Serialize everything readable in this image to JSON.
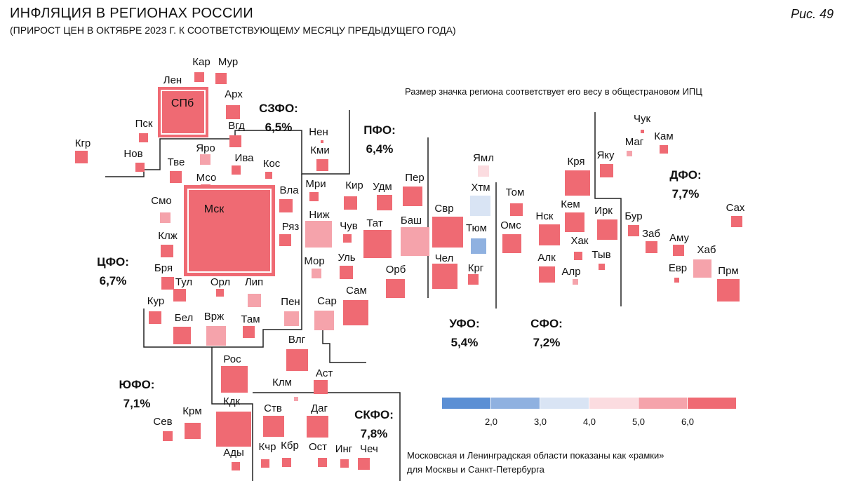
{
  "title": "ИНФЛЯЦИЯ В РЕГИОНАХ РОССИИ",
  "subtitle": "(ПРИРОСТ ЦЕН В ОКТЯБРЕ  2023 Г. К СООТВЕТСТВУЮЩЕМУ МЕСЯЦУ ПРЕДЫДУЩЕГО ГОДА)",
  "figure_label": "Рис. 49",
  "size_note": "Размер значка региона соответствует его весу в общестрановом ИПЦ",
  "frame_note_line1": "Московская и Ленинградская области показаны как «рамки»",
  "frame_note_line2": "для Москвы и Санкт-Петербурга",
  "colors": {
    "c1": "#5b8fd4",
    "c2": "#8fb1e0",
    "c3": "#d9e4f4",
    "c4": "#fbdce0",
    "c5": "#f5a3ab",
    "c6": "#ef6a73"
  },
  "legend": {
    "ticks": [
      "2,0",
      "3,0",
      "4,0",
      "5,0",
      "6,0"
    ],
    "bins": [
      "c1",
      "c2",
      "c3",
      "c4",
      "c5",
      "c6"
    ]
  },
  "districts": [
    {
      "name": "СЗФО:",
      "value": "6,5%"
    },
    {
      "name": "ПФО:",
      "value": "6,4%"
    },
    {
      "name": "ЦФО:",
      "value": "6,7%"
    },
    {
      "name": "ЮФО:",
      "value": "7,1%"
    },
    {
      "name": "СКФО:",
      "value": "7,8%"
    },
    {
      "name": "УФО:",
      "value": "5,4%"
    },
    {
      "name": "СФО:",
      "value": "7,2%"
    },
    {
      "name": "ДФО:",
      "value": "7,7%"
    }
  ],
  "regions": [
    {
      "label": "Кар",
      "color": "c6"
    },
    {
      "label": "Мур",
      "color": "c6"
    },
    {
      "label": "Лен",
      "color": "c6"
    },
    {
      "label": "СПб",
      "color": "c6"
    },
    {
      "label": "Арх",
      "color": "c6"
    },
    {
      "label": "Пск",
      "color": "c6"
    },
    {
      "label": "Вгд",
      "color": "c6"
    },
    {
      "label": "Кгр",
      "color": "c6"
    },
    {
      "label": "Нов",
      "color": "c6"
    },
    {
      "label": "Нен",
      "color": "c6"
    },
    {
      "label": "Кми",
      "color": "c6"
    },
    {
      "label": "Тве",
      "color": "c6"
    },
    {
      "label": "Яро",
      "color": "c5"
    },
    {
      "label": "Мсо",
      "color": "c6"
    },
    {
      "label": "Ива",
      "color": "c6"
    },
    {
      "label": "Кос",
      "color": "c6"
    },
    {
      "label": "Мск",
      "color": "c6"
    },
    {
      "label": "Смо",
      "color": "c5"
    },
    {
      "label": "Вла",
      "color": "c6"
    },
    {
      "label": "Ряз",
      "color": "c6"
    },
    {
      "label": "Клж",
      "color": "c6"
    },
    {
      "label": "Бря",
      "color": "c6"
    },
    {
      "label": "Тул",
      "color": "c6"
    },
    {
      "label": "Орл",
      "color": "c6"
    },
    {
      "label": "Лип",
      "color": "c5"
    },
    {
      "label": "Кур",
      "color": "c6"
    },
    {
      "label": "Бел",
      "color": "c6"
    },
    {
      "label": "Врж",
      "color": "c5"
    },
    {
      "label": "Там",
      "color": "c6"
    },
    {
      "label": "Мри",
      "color": "c6"
    },
    {
      "label": "Киp",
      "color": "c6"
    },
    {
      "label": "Удм",
      "color": "c6"
    },
    {
      "label": "Пер",
      "color": "c6"
    },
    {
      "label": "Ниж",
      "color": "c5"
    },
    {
      "label": "Чув",
      "color": "c6"
    },
    {
      "label": "Тат",
      "color": "c6"
    },
    {
      "label": "Баш",
      "color": "c5"
    },
    {
      "label": "Мор",
      "color": "c5"
    },
    {
      "label": "Уль",
      "color": "c6"
    },
    {
      "label": "Орб",
      "color": "c6"
    },
    {
      "label": "Пен",
      "color": "c5"
    },
    {
      "label": "Сар",
      "color": "c5"
    },
    {
      "label": "Сам",
      "color": "c6"
    },
    {
      "label": "Влг",
      "color": "c6"
    },
    {
      "label": "Рос",
      "color": "c6"
    },
    {
      "label": "Клм",
      "color": "c5"
    },
    {
      "label": "Аст",
      "color": "c6"
    },
    {
      "label": "Сев",
      "color": "c6"
    },
    {
      "label": "Крм",
      "color": "c6"
    },
    {
      "label": "Кдк",
      "color": "c6"
    },
    {
      "label": "Ады",
      "color": "c6"
    },
    {
      "label": "Ств",
      "color": "c6"
    },
    {
      "label": "Даг",
      "color": "c6"
    },
    {
      "label": "Кчр",
      "color": "c6"
    },
    {
      "label": "Кбр",
      "color": "c6"
    },
    {
      "label": "Ост",
      "color": "c6"
    },
    {
      "label": "Инг",
      "color": "c6"
    },
    {
      "label": "Чеч",
      "color": "c6"
    },
    {
      "label": "Ямл",
      "color": "c4"
    },
    {
      "label": "Хтм",
      "color": "c3"
    },
    {
      "label": "Свр",
      "color": "c6"
    },
    {
      "label": "Тюм",
      "color": "c2"
    },
    {
      "label": "Чел",
      "color": "c6"
    },
    {
      "label": "Кpг",
      "color": "c6"
    },
    {
      "label": "Том",
      "color": "c6"
    },
    {
      "label": "Омс",
      "color": "c6"
    },
    {
      "label": "Нск",
      "color": "c6"
    },
    {
      "label": "Кря",
      "color": "c6"
    },
    {
      "label": "Кем",
      "color": "c6"
    },
    {
      "label": "Хак",
      "color": "c6"
    },
    {
      "label": "Алк",
      "color": "c6"
    },
    {
      "label": "Алр",
      "color": "c5"
    },
    {
      "label": "Тыв",
      "color": "c6"
    },
    {
      "label": "Ирк",
      "color": "c6"
    },
    {
      "label": "Чук",
      "color": "c6"
    },
    {
      "label": "Маг",
      "color": "c5"
    },
    {
      "label": "Кам",
      "color": "c6"
    },
    {
      "label": "Яку",
      "color": "c6"
    },
    {
      "label": "Бур",
      "color": "c6"
    },
    {
      "label": "Заб",
      "color": "c6"
    },
    {
      "label": "Аму",
      "color": "c6"
    },
    {
      "label": "Хаб",
      "color": "c5"
    },
    {
      "label": "Евр",
      "color": "c6"
    },
    {
      "label": "Прм",
      "color": "c6"
    },
    {
      "label": "Сах",
      "color": "c6"
    }
  ]
}
